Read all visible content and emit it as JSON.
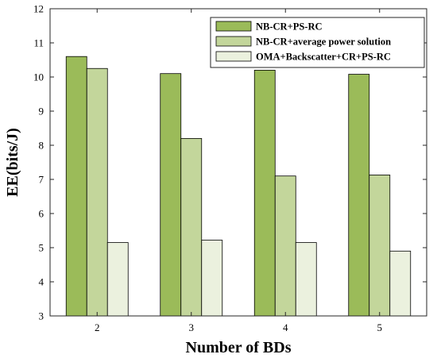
{
  "chart_data": {
    "type": "bar",
    "title": "",
    "xlabel": "Number of BDs",
    "ylabel": "EE(bits/J)",
    "categories": [
      "2",
      "3",
      "4",
      "5"
    ],
    "ylim": [
      3,
      12
    ],
    "yticks": [
      "3",
      "4",
      "5",
      "6",
      "7",
      "8",
      "9",
      "10",
      "11",
      "12"
    ],
    "legend_position": "top-right",
    "grid": false,
    "series": [
      {
        "name": "NB-CR+PS-RC",
        "color": "#9bbb59",
        "values": [
          10.6,
          10.1,
          10.2,
          10.08
        ]
      },
      {
        "name": "NB-CR+average power solution",
        "color": "#c3d69b",
        "values": [
          10.25,
          8.2,
          7.1,
          7.13
        ]
      },
      {
        "name": "OMA+Backscatter+CR+PS-RC",
        "color": "#ebf1de",
        "values": [
          5.15,
          5.22,
          5.15,
          4.9
        ]
      }
    ]
  }
}
